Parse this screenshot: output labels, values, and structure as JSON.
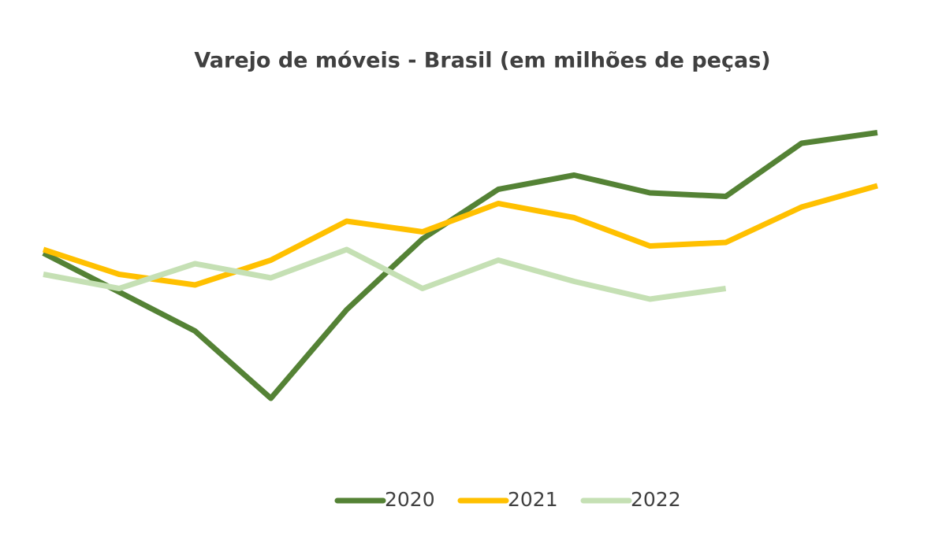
{
  "chart_data": {
    "type": "line",
    "title": "Varejo de móveis - Brasil (em milhões de peças)",
    "categories": [
      null,
      null,
      null,
      null,
      null,
      null,
      null,
      null,
      null,
      null,
      null,
      null
    ],
    "ylim": [
      0,
      100
    ],
    "legend": "bottom",
    "series": [
      {
        "name": "2020",
        "color": "#548235",
        "values": [
          53,
          42,
          31,
          12,
          37,
          57,
          71,
          75,
          70,
          69,
          84,
          87
        ]
      },
      {
        "name": "2021",
        "color": "#ffc000",
        "values": [
          54,
          47,
          44,
          51,
          62,
          59,
          67,
          63,
          55,
          56,
          66,
          72
        ]
      },
      {
        "name": "2022",
        "color": "#c5e0b4",
        "values": [
          47,
          43,
          50,
          46,
          54,
          43,
          51,
          45,
          40,
          43,
          null,
          null
        ]
      }
    ]
  }
}
